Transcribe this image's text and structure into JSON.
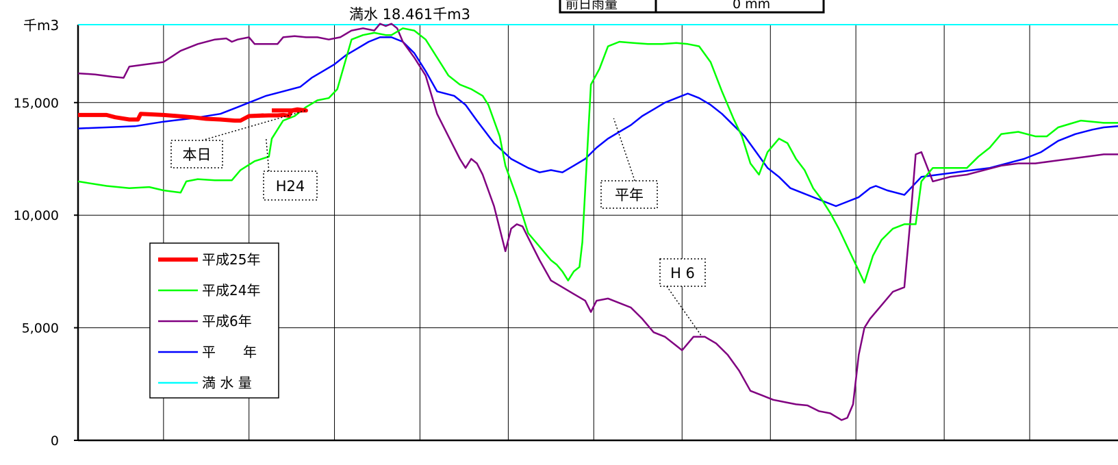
{
  "top_box": {
    "label": "前日雨量",
    "value": "0 mm"
  },
  "chart_data": {
    "type": "line",
    "title": "満水 18.461千m3",
    "y_unit": "千m3",
    "ylim": [
      0,
      18461
    ],
    "yticks": [
      0,
      5000,
      10000,
      15000
    ],
    "ytick_labels": [
      "0",
      "5,000",
      "10,000",
      "15,000"
    ],
    "x_range": [
      0,
      365
    ],
    "x_gridlines": [
      30,
      60,
      90,
      120,
      151,
      181,
      212,
      243,
      273,
      304,
      334
    ],
    "grid": true,
    "full_capacity": 18461,
    "legend": {
      "placement": "left-middle",
      "entries": [
        {
          "name": "平成25年",
          "color": "#ff0000"
        },
        {
          "name": "平成24年",
          "color": "#00ff00"
        },
        {
          "name": "平成6年",
          "color": "#800080"
        },
        {
          "name": "平　　年",
          "color": "#0000ff"
        },
        {
          "name": "満 水 量",
          "color": "#00ffff"
        }
      ]
    },
    "series": [
      {
        "name": "平成25年",
        "color": "#ff0000",
        "width": 6,
        "points": [
          [
            0,
            14450
          ],
          [
            10,
            14450
          ],
          [
            13,
            14350
          ],
          [
            18,
            14250
          ],
          [
            21,
            14250
          ],
          [
            22,
            14500
          ],
          [
            30,
            14450
          ],
          [
            35,
            14400
          ],
          [
            40,
            14350
          ],
          [
            45,
            14280
          ],
          [
            50,
            14250
          ],
          [
            55,
            14200
          ],
          [
            57,
            14200
          ],
          [
            60,
            14400
          ],
          [
            65,
            14430
          ],
          [
            60,
            14400
          ],
          [
            67,
            14430
          ],
          [
            70,
            14430
          ],
          [
            72,
            14450
          ],
          [
            74,
            14420
          ],
          [
            75,
            14650
          ],
          [
            77,
            14700
          ],
          [
            80,
            14650
          ],
          [
            68,
            14650
          ]
        ]
      },
      {
        "name": "平成24年",
        "color": "#00ff00",
        "width": 2.5,
        "points": [
          [
            0,
            11500
          ],
          [
            10,
            11300
          ],
          [
            18,
            11200
          ],
          [
            25,
            11250
          ],
          [
            30,
            11100
          ],
          [
            36,
            11000
          ],
          [
            38,
            11500
          ],
          [
            42,
            11600
          ],
          [
            48,
            11550
          ],
          [
            54,
            11550
          ],
          [
            57,
            12000
          ],
          [
            62,
            12400
          ],
          [
            67,
            12600
          ],
          [
            68,
            13400
          ],
          [
            72,
            14200
          ],
          [
            76,
            14400
          ],
          [
            80,
            14800
          ],
          [
            84,
            15100
          ],
          [
            88,
            15200
          ],
          [
            91,
            15600
          ],
          [
            96,
            17800
          ],
          [
            100,
            18000
          ],
          [
            104,
            18100
          ],
          [
            108,
            18000
          ],
          [
            110,
            18000
          ],
          [
            114,
            18300
          ],
          [
            118,
            18200
          ],
          [
            122,
            17800
          ],
          [
            126,
            17000
          ],
          [
            130,
            16200
          ],
          [
            134,
            15800
          ],
          [
            138,
            15600
          ],
          [
            142,
            15300
          ],
          [
            144,
            14900
          ],
          [
            146,
            14200
          ],
          [
            148,
            13500
          ],
          [
            150,
            12200
          ],
          [
            154,
            10800
          ],
          [
            158,
            9200
          ],
          [
            162,
            8600
          ],
          [
            166,
            8000
          ],
          [
            168,
            7800
          ],
          [
            170,
            7500
          ],
          [
            172,
            7100
          ],
          [
            174,
            7500
          ],
          [
            176,
            7700
          ],
          [
            177,
            8800
          ],
          [
            180,
            15800
          ],
          [
            183,
            16500
          ],
          [
            186,
            17500
          ],
          [
            190,
            17700
          ],
          [
            195,
            17650
          ],
          [
            200,
            17600
          ],
          [
            205,
            17600
          ],
          [
            210,
            17650
          ],
          [
            214,
            17600
          ],
          [
            218,
            17500
          ],
          [
            222,
            16800
          ],
          [
            226,
            15500
          ],
          [
            230,
            14300
          ],
          [
            233,
            13500
          ],
          [
            236,
            12300
          ],
          [
            239,
            11800
          ],
          [
            242,
            12800
          ],
          [
            246,
            13400
          ],
          [
            249,
            13200
          ],
          [
            252,
            12500
          ],
          [
            255,
            12000
          ],
          [
            258,
            11200
          ],
          [
            261,
            10700
          ],
          [
            264,
            10100
          ],
          [
            267,
            9400
          ],
          [
            270,
            8600
          ],
          [
            273,
            7800
          ],
          [
            276,
            7000
          ],
          [
            279,
            8200
          ],
          [
            282,
            8900
          ],
          [
            286,
            9400
          ],
          [
            290,
            9600
          ],
          [
            294,
            9600
          ],
          [
            296,
            11500
          ],
          [
            300,
            12100
          ],
          [
            306,
            12100
          ],
          [
            312,
            12100
          ],
          [
            316,
            12600
          ],
          [
            320,
            13000
          ],
          [
            324,
            13600
          ],
          [
            330,
            13700
          ],
          [
            336,
            13500
          ],
          [
            340,
            13500
          ],
          [
            344,
            13900
          ],
          [
            348,
            14050
          ],
          [
            352,
            14200
          ],
          [
            356,
            14150
          ],
          [
            360,
            14100
          ],
          [
            365,
            14100
          ]
        ]
      },
      {
        "name": "平成6年",
        "color": "#800080",
        "width": 2.5,
        "points": [
          [
            0,
            16300
          ],
          [
            6,
            16250
          ],
          [
            12,
            16150
          ],
          [
            16,
            16100
          ],
          [
            18,
            16600
          ],
          [
            24,
            16700
          ],
          [
            30,
            16800
          ],
          [
            36,
            17300
          ],
          [
            42,
            17600
          ],
          [
            48,
            17800
          ],
          [
            52,
            17850
          ],
          [
            54,
            17700
          ],
          [
            56,
            17800
          ],
          [
            60,
            17900
          ],
          [
            62,
            17600
          ],
          [
            66,
            17600
          ],
          [
            70,
            17600
          ],
          [
            72,
            17900
          ],
          [
            76,
            17950
          ],
          [
            80,
            17900
          ],
          [
            84,
            17900
          ],
          [
            88,
            17800
          ],
          [
            92,
            17900
          ],
          [
            96,
            18200
          ],
          [
            100,
            18300
          ],
          [
            104,
            18200
          ],
          [
            106,
            18500
          ],
          [
            108,
            18400
          ],
          [
            110,
            18500
          ],
          [
            112,
            18300
          ],
          [
            114,
            17700
          ],
          [
            118,
            17000
          ],
          [
            122,
            16200
          ],
          [
            126,
            14500
          ],
          [
            130,
            13500
          ],
          [
            134,
            12500
          ],
          [
            136,
            12100
          ],
          [
            138,
            12500
          ],
          [
            140,
            12300
          ],
          [
            142,
            11800
          ],
          [
            146,
            10400
          ],
          [
            150,
            8400
          ],
          [
            152,
            9400
          ],
          [
            154,
            9600
          ],
          [
            156,
            9500
          ],
          [
            158,
            9000
          ],
          [
            162,
            8000
          ],
          [
            166,
            7100
          ],
          [
            170,
            6800
          ],
          [
            174,
            6500
          ],
          [
            178,
            6200
          ],
          [
            180,
            5700
          ],
          [
            182,
            6200
          ],
          [
            186,
            6300
          ],
          [
            190,
            6100
          ],
          [
            194,
            5900
          ],
          [
            198,
            5400
          ],
          [
            202,
            4800
          ],
          [
            206,
            4600
          ],
          [
            210,
            4200
          ],
          [
            212,
            4000
          ],
          [
            216,
            4600
          ],
          [
            220,
            4600
          ],
          [
            224,
            4300
          ],
          [
            228,
            3800
          ],
          [
            232,
            3100
          ],
          [
            236,
            2200
          ],
          [
            240,
            2000
          ],
          [
            244,
            1800
          ],
          [
            248,
            1700
          ],
          [
            252,
            1600
          ],
          [
            256,
            1550
          ],
          [
            260,
            1300
          ],
          [
            264,
            1200
          ],
          [
            268,
            900
          ],
          [
            270,
            1000
          ],
          [
            272,
            1600
          ],
          [
            274,
            3800
          ],
          [
            276,
            5000
          ],
          [
            278,
            5400
          ],
          [
            282,
            6000
          ],
          [
            286,
            6600
          ],
          [
            290,
            6800
          ],
          [
            292,
            9600
          ],
          [
            294,
            12700
          ],
          [
            296,
            12800
          ],
          [
            300,
            11500
          ],
          [
            306,
            11700
          ],
          [
            312,
            11800
          ],
          [
            318,
            12000
          ],
          [
            324,
            12200
          ],
          [
            330,
            12300
          ],
          [
            336,
            12300
          ],
          [
            342,
            12400
          ],
          [
            348,
            12500
          ],
          [
            354,
            12600
          ],
          [
            360,
            12700
          ],
          [
            365,
            12700
          ]
        ]
      },
      {
        "name": "平　　年",
        "color": "#0000ff",
        "width": 2.5,
        "points": [
          [
            0,
            13850
          ],
          [
            10,
            13900
          ],
          [
            20,
            13950
          ],
          [
            30,
            14150
          ],
          [
            40,
            14300
          ],
          [
            50,
            14500
          ],
          [
            56,
            14800
          ],
          [
            60,
            15000
          ],
          [
            66,
            15300
          ],
          [
            72,
            15500
          ],
          [
            78,
            15700
          ],
          [
            82,
            16100
          ],
          [
            86,
            16400
          ],
          [
            90,
            16700
          ],
          [
            94,
            17100
          ],
          [
            98,
            17400
          ],
          [
            102,
            17700
          ],
          [
            106,
            17900
          ],
          [
            110,
            17900
          ],
          [
            114,
            17700
          ],
          [
            118,
            17200
          ],
          [
            122,
            16400
          ],
          [
            126,
            15500
          ],
          [
            132,
            15300
          ],
          [
            136,
            14900
          ],
          [
            140,
            14200
          ],
          [
            146,
            13200
          ],
          [
            152,
            12500
          ],
          [
            158,
            12100
          ],
          [
            162,
            11900
          ],
          [
            166,
            12000
          ],
          [
            170,
            11900
          ],
          [
            174,
            12200
          ],
          [
            178,
            12500
          ],
          [
            182,
            13000
          ],
          [
            186,
            13400
          ],
          [
            190,
            13700
          ],
          [
            194,
            14000
          ],
          [
            198,
            14400
          ],
          [
            202,
            14700
          ],
          [
            206,
            15000
          ],
          [
            210,
            15200
          ],
          [
            214,
            15400
          ],
          [
            218,
            15200
          ],
          [
            222,
            14900
          ],
          [
            226,
            14500
          ],
          [
            230,
            14000
          ],
          [
            234,
            13500
          ],
          [
            238,
            12800
          ],
          [
            242,
            12100
          ],
          [
            246,
            11700
          ],
          [
            250,
            11200
          ],
          [
            254,
            11000
          ],
          [
            258,
            10800
          ],
          [
            262,
            10600
          ],
          [
            266,
            10400
          ],
          [
            270,
            10600
          ],
          [
            274,
            10800
          ],
          [
            278,
            11200
          ],
          [
            280,
            11300
          ],
          [
            284,
            11100
          ],
          [
            290,
            10900
          ],
          [
            296,
            11700
          ],
          [
            302,
            11800
          ],
          [
            308,
            11900
          ],
          [
            314,
            12000
          ],
          [
            320,
            12100
          ],
          [
            326,
            12300
          ],
          [
            332,
            12500
          ],
          [
            338,
            12800
          ],
          [
            344,
            13300
          ],
          [
            350,
            13600
          ],
          [
            356,
            13800
          ],
          [
            360,
            13900
          ],
          [
            365,
            13950
          ]
        ]
      }
    ],
    "callouts": [
      {
        "text": "本日",
        "target": [
          80,
          14650
        ]
      },
      {
        "text": "H24",
        "target": [
          66,
          13400
        ]
      },
      {
        "text": "平年",
        "target": [
          188,
          14300
        ]
      },
      {
        "text": "H 6",
        "target": [
          219,
          4600
        ]
      }
    ]
  }
}
